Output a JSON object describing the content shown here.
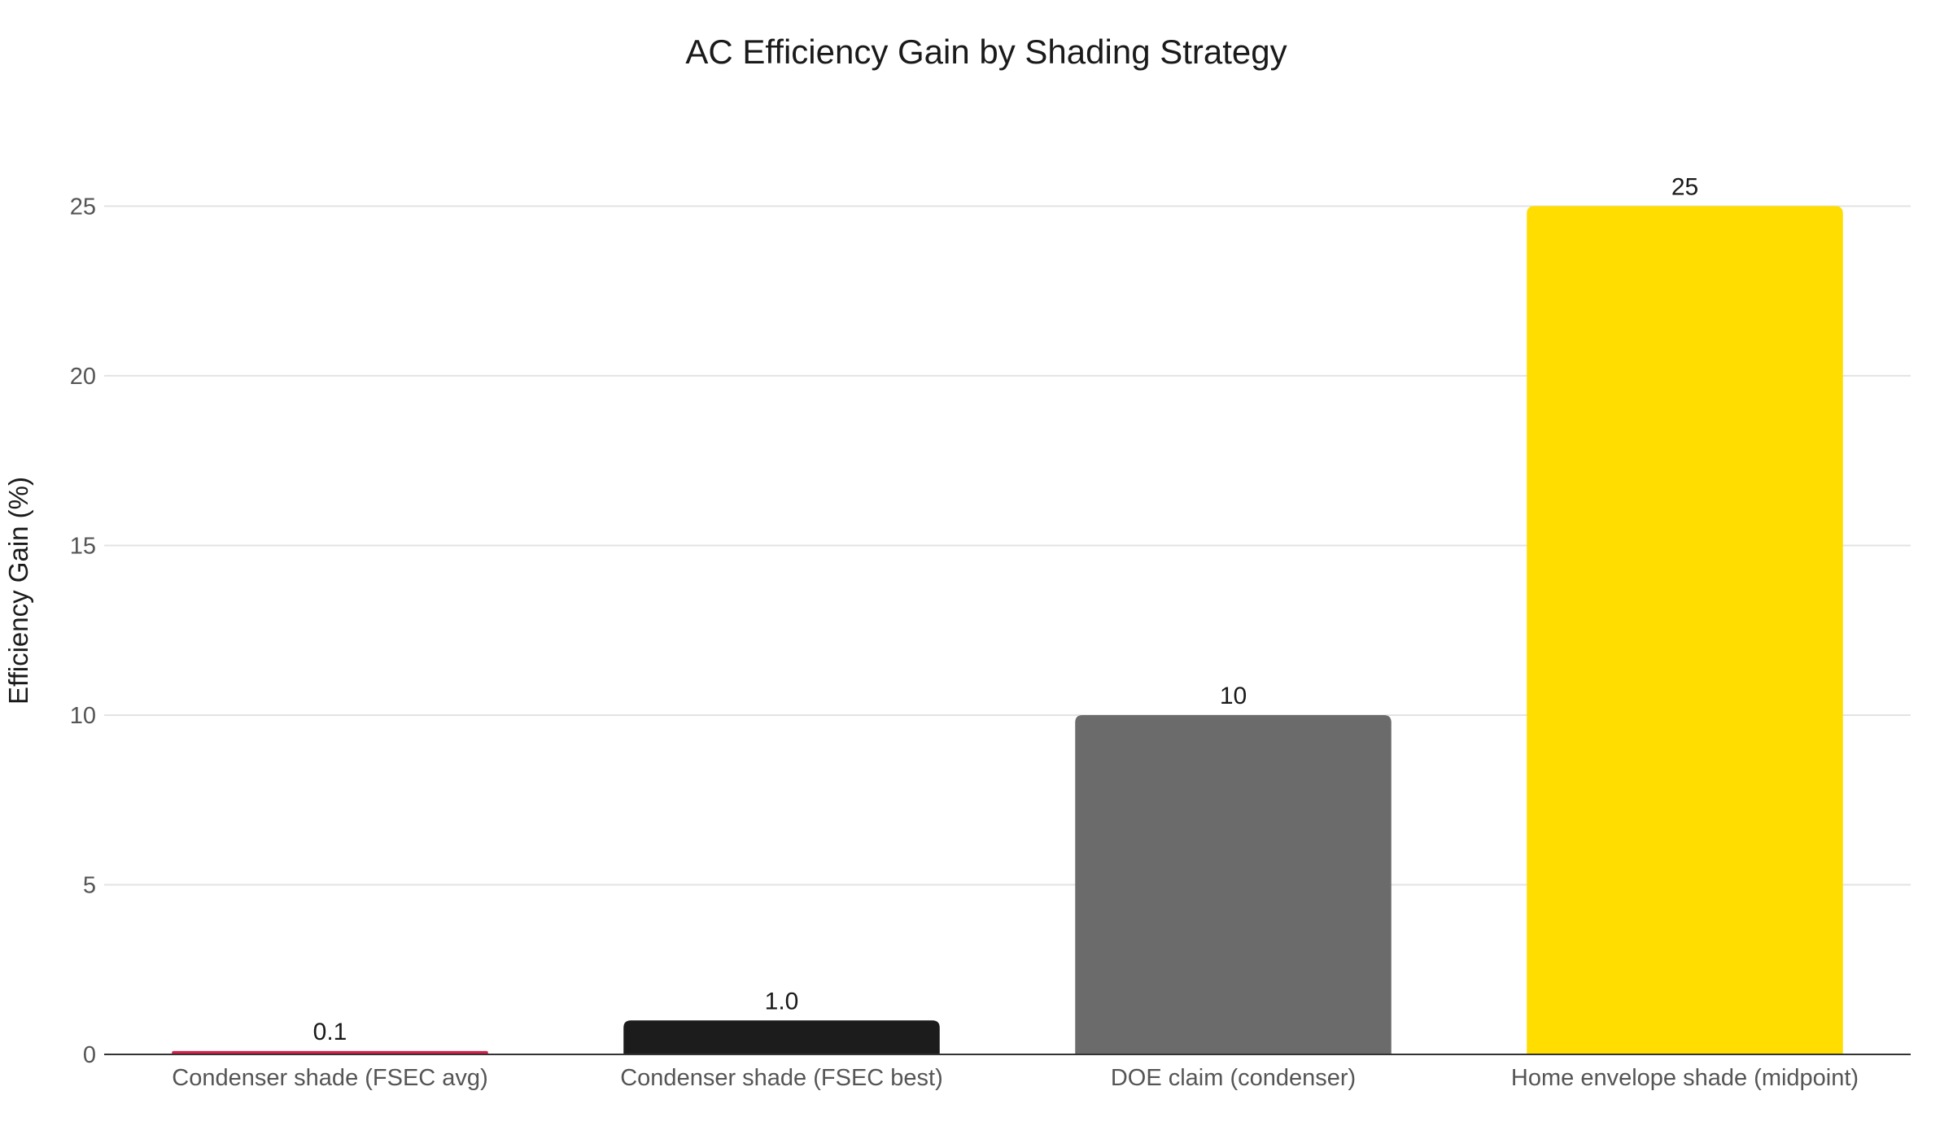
{
  "chart_data": {
    "type": "bar",
    "title": "AC Efficiency Gain by Shading Strategy",
    "xlabel": "",
    "ylabel": "Efficiency Gain (%)",
    "ylim": [
      0,
      27
    ],
    "yticks": [
      0,
      5,
      10,
      15,
      20,
      25
    ],
    "grid": true,
    "categories": [
      "Condenser shade (FSEC avg)",
      "Condenser shade (FSEC best)",
      "DOE claim (condenser)",
      "Home envelope shade (midpoint)"
    ],
    "values": [
      0.1,
      1.0,
      10,
      25
    ],
    "data_labels": [
      "0.1",
      "1.0",
      "10",
      "25"
    ],
    "colors": [
      "#d61f4b",
      "#1c1c1c",
      "#6b6b6b",
      "#ffdd00"
    ]
  }
}
